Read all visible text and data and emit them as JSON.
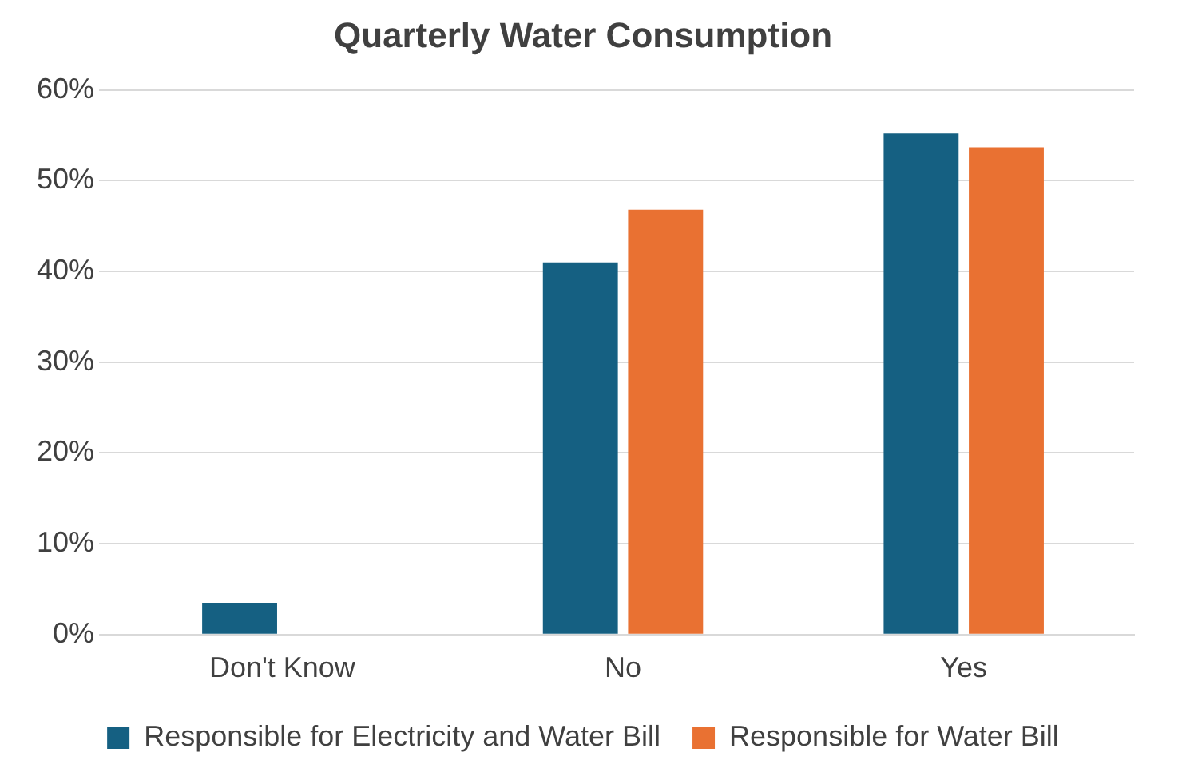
{
  "chart_data": {
    "type": "bar",
    "title": "Quarterly Water Consumption",
    "categories": [
      "Don't Know",
      "No",
      "Yes"
    ],
    "series": [
      {
        "name": "Responsible for Electricity and Water Bill",
        "color": "#156082",
        "values": [
          3.5,
          41,
          55.2
        ]
      },
      {
        "name": "Responsible for Water Bill",
        "color": "#e97132",
        "values": [
          0,
          46.8,
          53.7
        ]
      }
    ],
    "ylim": [
      0,
      60
    ],
    "yticks": [
      {
        "value": 0,
        "label": "0%"
      },
      {
        "value": 10,
        "label": "10%"
      },
      {
        "value": 20,
        "label": "20%"
      },
      {
        "value": 30,
        "label": "30%"
      },
      {
        "value": 40,
        "label": "40%"
      },
      {
        "value": 50,
        "label": "50%"
      },
      {
        "value": 60,
        "label": "60%"
      }
    ],
    "grid": "y",
    "legend": "bottom"
  }
}
